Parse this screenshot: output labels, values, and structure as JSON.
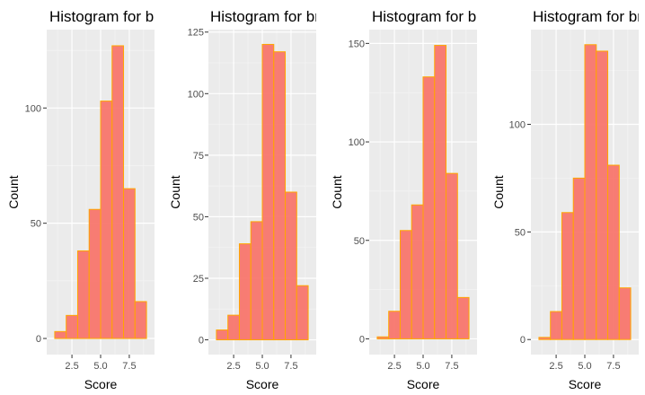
{
  "colors": {
    "panel_background": "#ebebeb",
    "grid_major": "#ffffff",
    "grid_minor": "#f4f4f4",
    "bar_fill": "#f8766d",
    "bar_outline": "#ffa500",
    "tick_label": "#4d4d4d"
  },
  "chart_data": [
    {
      "type": "bar",
      "title": "Histogram for br",
      "xlabel": "Score",
      "ylabel": "Count",
      "xlim": [
        0.3,
        9.7
      ],
      "ylim": [
        -7,
        134
      ],
      "x_ticks": [
        2.5,
        5.0,
        7.5
      ],
      "x_tick_labels": [
        "2.5",
        "5.0",
        "7.5"
      ],
      "y_ticks": [
        0,
        50,
        100
      ],
      "y_tick_labels": [
        "0",
        "50",
        "100"
      ],
      "bin_edges": [
        1,
        2,
        3,
        4,
        5,
        6,
        7,
        8,
        9
      ],
      "values": [
        3,
        10,
        38,
        56,
        103,
        127,
        65,
        16
      ],
      "grid": true
    },
    {
      "type": "bar",
      "title": "Histogram for br",
      "xlabel": "Score",
      "ylabel": "Count",
      "xlim": [
        0.3,
        9.7
      ],
      "ylim": [
        -6,
        126
      ],
      "x_ticks": [
        2.5,
        5.0,
        7.5
      ],
      "x_tick_labels": [
        "2.5",
        "5.0",
        "7.5"
      ],
      "y_ticks": [
        0,
        25,
        50,
        75,
        100,
        125
      ],
      "y_tick_labels": [
        "0",
        "25",
        "50",
        "75",
        "100",
        "125"
      ],
      "bin_edges": [
        1,
        2,
        3,
        4,
        5,
        6,
        7,
        8,
        9
      ],
      "values": [
        4,
        10,
        39,
        48,
        120,
        117,
        60,
        22
      ],
      "grid": true
    },
    {
      "type": "bar",
      "title": "Histogram for br",
      "xlabel": "Score",
      "ylabel": "Count",
      "xlim": [
        0.3,
        9.7
      ],
      "ylim": [
        -8,
        157
      ],
      "x_ticks": [
        2.5,
        5.0,
        7.5
      ],
      "x_tick_labels": [
        "2.5",
        "5.0",
        "7.5"
      ],
      "y_ticks": [
        0,
        50,
        100,
        150
      ],
      "y_tick_labels": [
        "0",
        "50",
        "100",
        "150"
      ],
      "bin_edges": [
        1,
        2,
        3,
        4,
        5,
        6,
        7,
        8,
        9
      ],
      "values": [
        1,
        14,
        55,
        68,
        133,
        149,
        84,
        21
      ],
      "grid": true
    },
    {
      "type": "bar",
      "title": "Histogram for br",
      "xlabel": "Score",
      "ylabel": "Count",
      "xlim": [
        0.3,
        9.7
      ],
      "ylim": [
        -7,
        144
      ],
      "x_ticks": [
        2.5,
        5.0,
        7.5
      ],
      "x_tick_labels": [
        "2.5",
        "5.0",
        "7.5"
      ],
      "y_ticks": [
        0,
        50,
        100
      ],
      "y_tick_labels": [
        "0",
        "50",
        "100"
      ],
      "bin_edges": [
        1,
        2,
        3,
        4,
        5,
        6,
        7,
        8,
        9
      ],
      "values": [
        1,
        13,
        59,
        75,
        137,
        134,
        81,
        24
      ],
      "grid": true
    }
  ]
}
